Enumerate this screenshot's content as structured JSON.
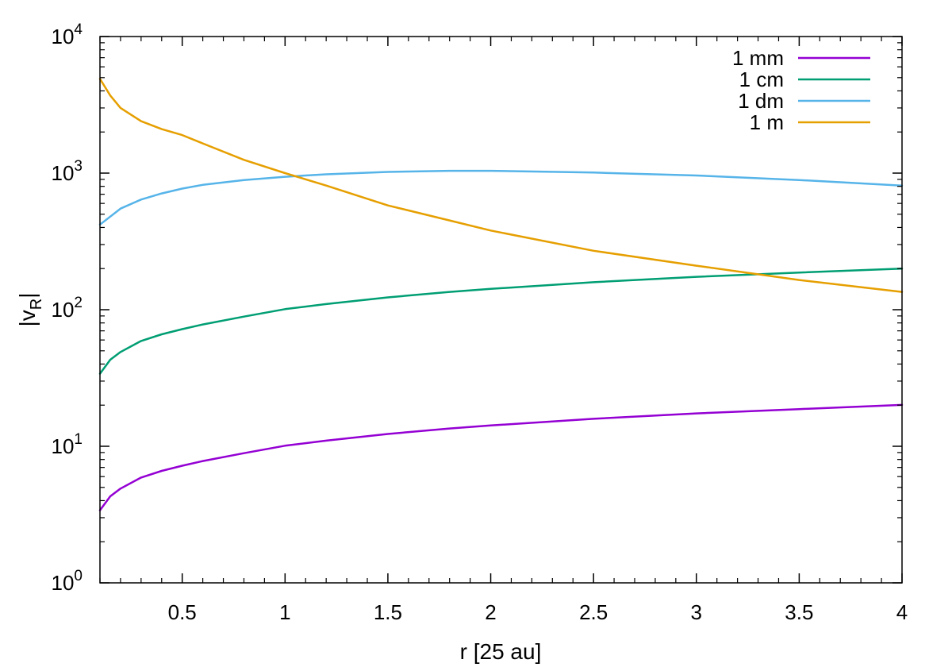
{
  "chart_data": {
    "type": "line",
    "title": "",
    "xlabel": "r [25 au]",
    "ylabel": "|v_R|",
    "ylabel_main": "|v",
    "ylabel_sub": "R",
    "ylabel_end": "|",
    "xlim": [
      0.1,
      4
    ],
    "ylim": [
      1,
      10000
    ],
    "yscale": "log",
    "grid": false,
    "legend_position": "top-right",
    "x_ticks": [
      {
        "value": 0.5,
        "label": "0.5"
      },
      {
        "value": 1,
        "label": "1"
      },
      {
        "value": 1.5,
        "label": "1.5"
      },
      {
        "value": 2,
        "label": "2"
      },
      {
        "value": 2.5,
        "label": "2.5"
      },
      {
        "value": 3,
        "label": "3"
      },
      {
        "value": 3.5,
        "label": "3.5"
      },
      {
        "value": 4,
        "label": "4"
      }
    ],
    "y_ticks": [
      {
        "value": 1,
        "base": "10",
        "exp": "0"
      },
      {
        "value": 10,
        "base": "10",
        "exp": "1"
      },
      {
        "value": 100,
        "base": "10",
        "exp": "2"
      },
      {
        "value": 1000,
        "base": "10",
        "exp": "3"
      },
      {
        "value": 10000,
        "base": "10",
        "exp": "4"
      }
    ],
    "series": [
      {
        "name": "1 mm",
        "color": "#9400d3",
        "x": [
          0.1,
          0.15,
          0.2,
          0.3,
          0.4,
          0.5,
          0.6,
          0.8,
          1.0,
          1.2,
          1.5,
          1.8,
          2.0,
          2.5,
          3.0,
          3.5,
          4.0
        ],
        "y": [
          3.4,
          4.3,
          4.9,
          5.9,
          6.6,
          7.2,
          7.8,
          8.9,
          10.1,
          11.0,
          12.3,
          13.5,
          14.2,
          15.9,
          17.4,
          18.7,
          20.1
        ]
      },
      {
        "name": "1 cm",
        "color": "#009e73",
        "x": [
          0.1,
          0.15,
          0.2,
          0.3,
          0.4,
          0.5,
          0.6,
          0.8,
          1.0,
          1.2,
          1.5,
          1.8,
          2.0,
          2.5,
          3.0,
          3.5,
          4.0
        ],
        "y": [
          34,
          43,
          49,
          59,
          66,
          72,
          78,
          89,
          101,
          110,
          123,
          135,
          142,
          159,
          174,
          187,
          200
        ]
      },
      {
        "name": "1 dm",
        "color": "#56b4e9",
        "x": [
          0.1,
          0.2,
          0.3,
          0.4,
          0.5,
          0.6,
          0.8,
          1.0,
          1.2,
          1.5,
          1.8,
          2.0,
          2.5,
          3.0,
          3.5,
          4.0
        ],
        "y": [
          420,
          550,
          640,
          710,
          770,
          820,
          890,
          940,
          980,
          1020,
          1040,
          1040,
          1010,
          960,
          890,
          810
        ]
      },
      {
        "name": "1 m",
        "color": "#e69f00",
        "x": [
          0.1,
          0.15,
          0.2,
          0.3,
          0.4,
          0.5,
          0.6,
          0.8,
          1.0,
          1.2,
          1.5,
          1.8,
          2.0,
          2.5,
          3.0,
          3.5,
          4.0
        ],
        "y": [
          4900,
          3700,
          3000,
          2400,
          2100,
          1900,
          1650,
          1250,
          1000,
          810,
          580,
          450,
          380,
          270,
          210,
          165,
          135
        ]
      }
    ]
  }
}
